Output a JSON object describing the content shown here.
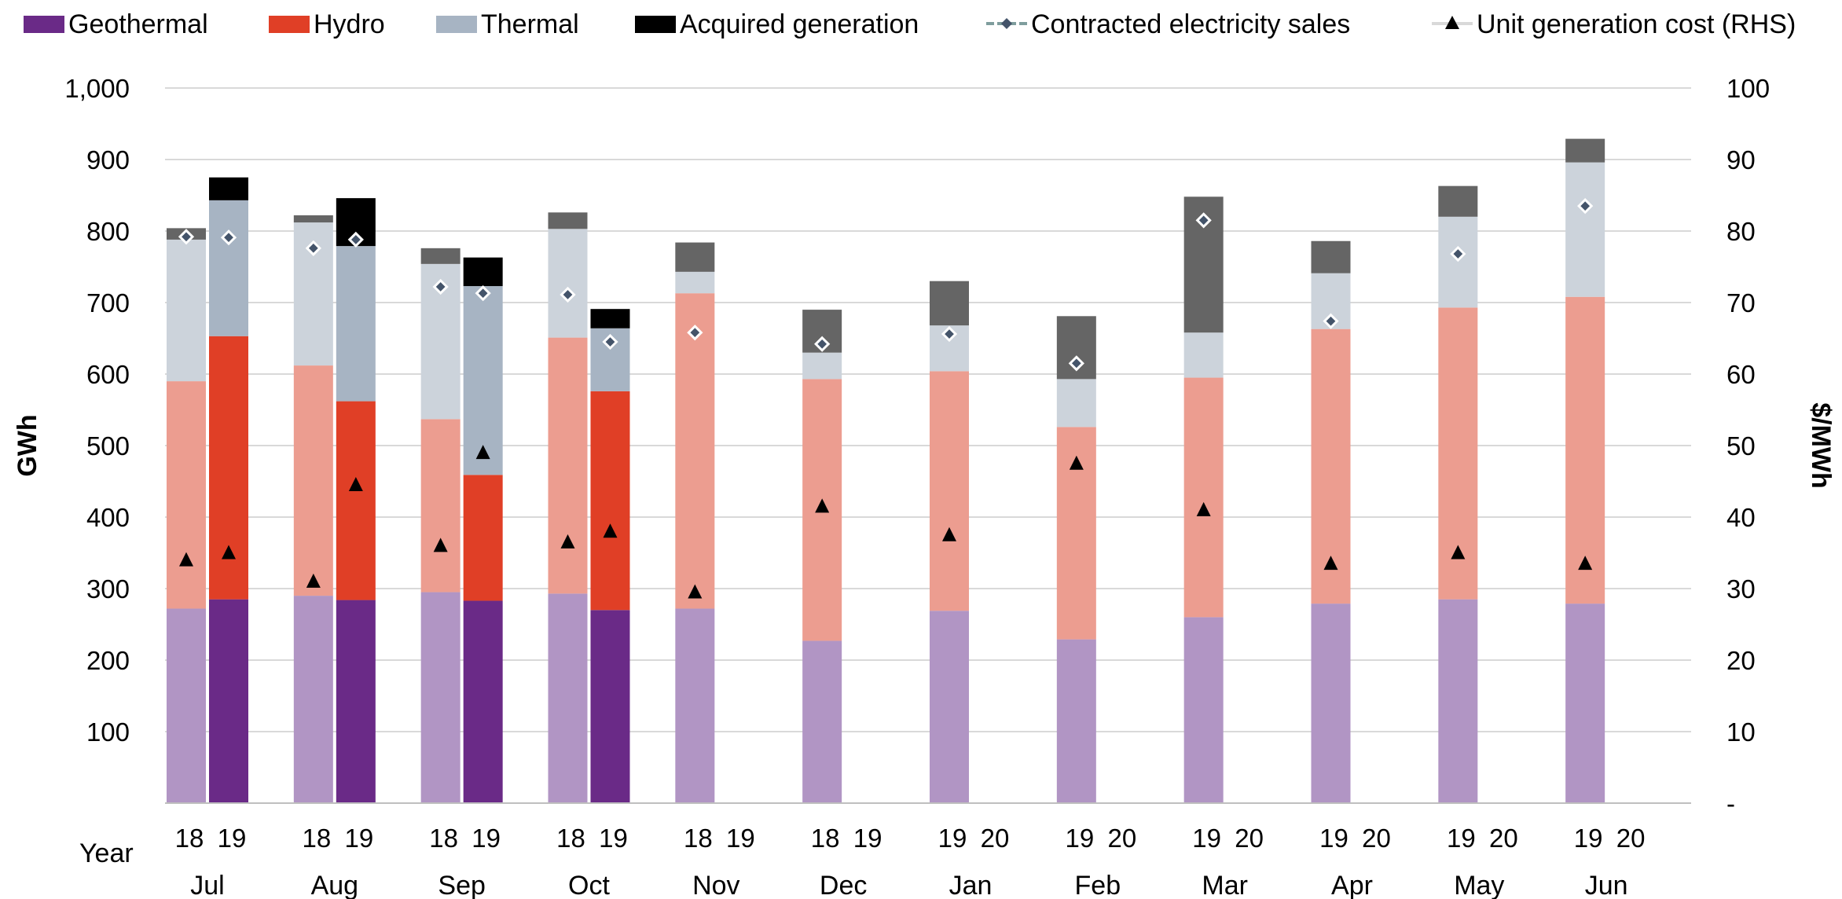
{
  "chart_data": {
    "type": "bar",
    "months": [
      "Jul",
      "Aug",
      "Sep",
      "Oct",
      "Nov",
      "Dec",
      "Jan",
      "Feb",
      "Mar",
      "Apr",
      "May",
      "Jun"
    ],
    "year_pairs": [
      [
        "18",
        "19"
      ],
      [
        "18",
        "19"
      ],
      [
        "18",
        "19"
      ],
      [
        "18",
        "19"
      ],
      [
        "18",
        "19"
      ],
      [
        "18",
        "19"
      ],
      [
        "19",
        "20"
      ],
      [
        "19",
        "20"
      ],
      [
        "19",
        "20"
      ],
      [
        "19",
        "20"
      ],
      [
        "19",
        "20"
      ],
      [
        "19",
        "20"
      ]
    ],
    "year_axis_label": "Year",
    "ylabel": "GWh",
    "y2label": "$/MWh",
    "ylim": [
      0,
      1000
    ],
    "y2lim": [
      0,
      100
    ],
    "yticks": [
      "100",
      "200",
      "300",
      "400",
      "500",
      "600",
      "700",
      "800",
      "900",
      "1,000"
    ],
    "y2ticks": [
      "-",
      "10",
      "20",
      "30",
      "40",
      "50",
      "60",
      "70",
      "80",
      "90",
      "100"
    ],
    "legend": [
      {
        "label": "Geothermal",
        "color": "#6a2a87",
        "marker": "square"
      },
      {
        "label": "Hydro",
        "color": "#e03f26",
        "marker": "square"
      },
      {
        "label": "Thermal",
        "color": "#a7b4c3",
        "marker": "square"
      },
      {
        "label": "Acquired generation",
        "color": "#000000",
        "marker": "square"
      },
      {
        "label": "Contracted electricity sales",
        "color": "#7f9d9d",
        "marker": "line-diamond"
      },
      {
        "label": "Unit generation cost (RHS)",
        "color": "#000000",
        "marker": "line-triangle"
      }
    ],
    "series": [
      {
        "name": "Geothermal",
        "values": [
          272,
          285,
          290,
          284,
          295,
          283,
          293,
          270,
          272,
          null,
          227,
          null,
          269,
          null,
          229,
          null,
          260,
          null,
          279,
          null,
          285,
          null,
          279,
          null
        ]
      },
      {
        "name": "Hydro",
        "values": [
          318,
          368,
          322,
          278,
          242,
          176,
          358,
          306,
          441,
          null,
          366,
          null,
          335,
          null,
          297,
          null,
          335,
          null,
          384,
          null,
          408,
          null,
          429,
          null
        ]
      },
      {
        "name": "Thermal",
        "values": [
          198,
          190,
          200,
          217,
          217,
          264,
          152,
          88,
          30,
          null,
          37,
          null,
          64,
          null,
          67,
          null,
          63,
          null,
          78,
          null,
          127,
          null,
          188,
          null
        ]
      },
      {
        "name": "Acquired generation",
        "values": [
          16,
          32,
          10,
          67,
          22,
          40,
          23,
          27,
          41,
          null,
          60,
          null,
          62,
          null,
          88,
          null,
          190,
          null,
          45,
          null,
          43,
          null,
          33,
          null
        ]
      },
      {
        "name": "Contracted electricity sales",
        "values": [
          792,
          791,
          776,
          788,
          722,
          713,
          711,
          645,
          658,
          null,
          642,
          null,
          656,
          null,
          615,
          null,
          815,
          null,
          674,
          null,
          768,
          null,
          835,
          null
        ]
      },
      {
        "name": "Unit generation cost (RHS)",
        "values": [
          34,
          35,
          31,
          44.5,
          36,
          49,
          36.5,
          38,
          29.5,
          null,
          41.5,
          null,
          37.5,
          null,
          47.5,
          null,
          41,
          null,
          33.5,
          null,
          35,
          null,
          33.5,
          null
        ]
      }
    ]
  }
}
